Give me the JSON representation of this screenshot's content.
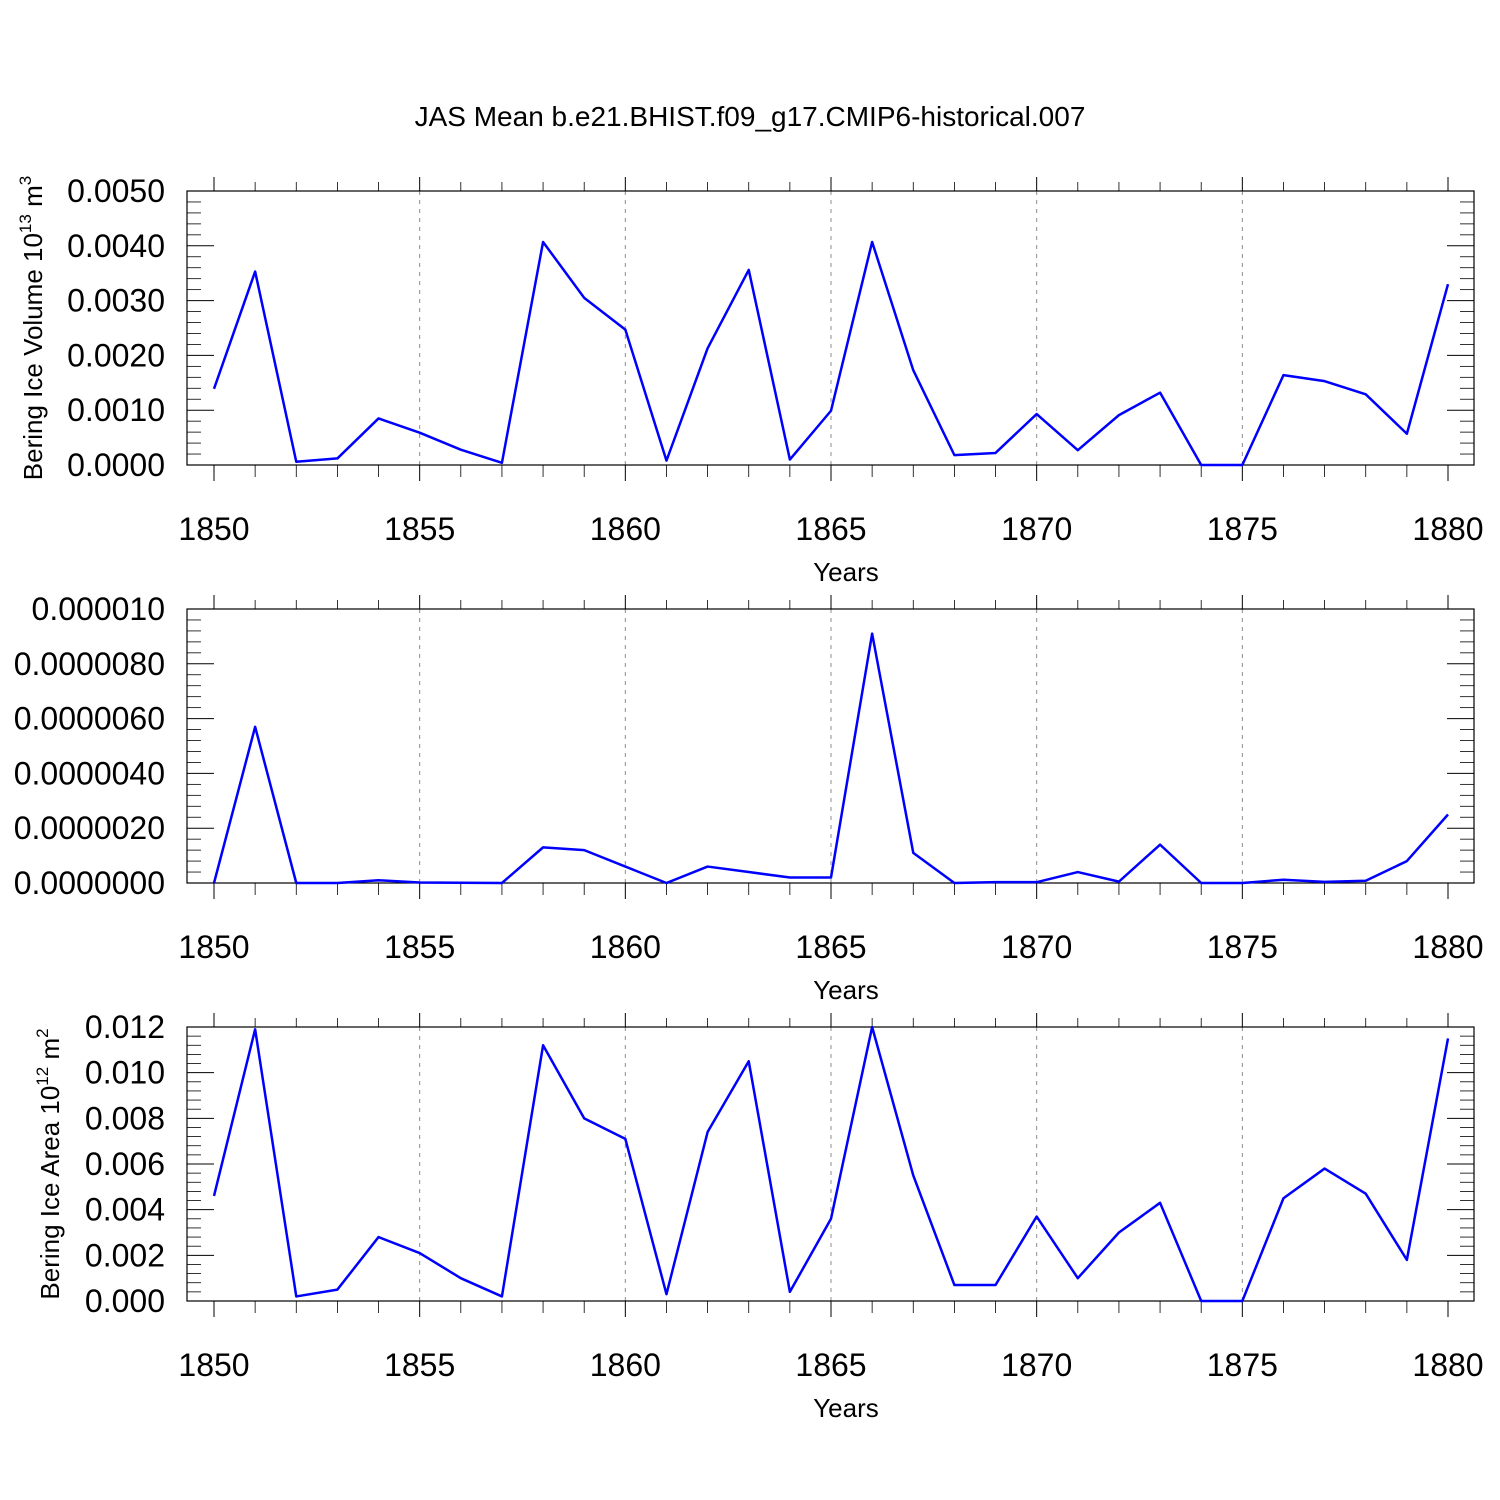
{
  "title": "JAS Mean b.e21.BHIST.f09_g17.CMIP6-historical.007",
  "colors": {
    "series": "#0000ff",
    "axis": "#000000",
    "grid": "#8c8c8c"
  },
  "chart_data": [
    {
      "type": "line",
      "xlabel": "Years",
      "ylabel_parts": {
        "prefix": "Bering Ice Volume 10",
        "exp": "13",
        "unit": " m",
        "unit_exp": "3"
      },
      "xlim": [
        1850,
        1880
      ],
      "ylim": [
        0,
        0.005
      ],
      "xticks": [
        "1850",
        "1855",
        "1860",
        "1865",
        "1870",
        "1875",
        "1880"
      ],
      "yticks": [
        "0.0000",
        "0.0010",
        "0.0020",
        "0.0030",
        "0.0040",
        "0.0050"
      ],
      "vertical_grid": "dashed at 5-year ticks",
      "x": [
        1850,
        1851,
        1852,
        1853,
        1854,
        1855,
        1856,
        1857,
        1858,
        1859,
        1860,
        1861,
        1862,
        1863,
        1864,
        1865,
        1866,
        1867,
        1868,
        1869,
        1870,
        1871,
        1872,
        1873,
        1874,
        1875,
        1876,
        1877,
        1878,
        1879,
        1880
      ],
      "series": [
        {
          "values": [
            0.00139,
            0.00353,
            6e-05,
            0.00012,
            0.00085,
            0.00059,
            0.00028,
            4e-05,
            0.00407,
            0.00305,
            0.00247,
            8e-05,
            0.00213,
            0.00356,
            0.0001,
            0.00099,
            0.00407,
            0.00173,
            0.00018,
            0.00022,
            0.00093,
            0.00027,
            0.00091,
            0.00132,
            0.0,
            0.0,
            0.00164,
            0.00153,
            0.00129,
            0.00057,
            0.0033
          ]
        }
      ]
    },
    {
      "type": "line",
      "xlabel": "Years",
      "xlim": [
        1850,
        1880
      ],
      "ylim": [
        0,
        1e-05
      ],
      "xticks": [
        "1850",
        "1855",
        "1860",
        "1865",
        "1870",
        "1875",
        "1880"
      ],
      "yticks": [
        "0.0000000",
        "0.0000020",
        "0.0000040",
        "0.0000060",
        "0.0000080",
        "0.000010"
      ],
      "vertical_grid": "dashed at 5-year ticks",
      "x": [
        1850,
        1851,
        1852,
        1853,
        1854,
        1855,
        1856,
        1857,
        1858,
        1859,
        1860,
        1861,
        1862,
        1863,
        1864,
        1865,
        1866,
        1867,
        1868,
        1869,
        1870,
        1871,
        1872,
        1873,
        1874,
        1875,
        1876,
        1877,
        1878,
        1879,
        1880
      ],
      "series": [
        {
          "values": [
            0.0,
            5.7e-06,
            0.0,
            0.0,
            1e-07,
            2e-08,
            1e-08,
            0.0,
            1.3e-06,
            1.2e-06,
            6e-07,
            0.0,
            6e-07,
            4e-07,
            2e-07,
            2e-07,
            9.1e-06,
            1.1e-06,
            0.0,
            3e-08,
            3e-08,
            4e-07,
            5e-08,
            1.4e-06,
            0.0,
            0.0,
            1.2e-07,
            4e-08,
            8e-08,
            8e-07,
            2.5e-06
          ]
        }
      ]
    },
    {
      "type": "line",
      "xlabel": "Years",
      "ylabel_parts": {
        "prefix": "Bering Ice Area 10",
        "exp": "12",
        "unit": " m",
        "unit_exp": "2"
      },
      "xlim": [
        1850,
        1880
      ],
      "ylim": [
        0,
        0.012
      ],
      "xticks": [
        "1850",
        "1855",
        "1860",
        "1865",
        "1870",
        "1875",
        "1880"
      ],
      "yticks": [
        "0.000",
        "0.002",
        "0.004",
        "0.006",
        "0.008",
        "0.010",
        "0.012"
      ],
      "vertical_grid": "dashed at 5-year ticks",
      "x": [
        1850,
        1851,
        1852,
        1853,
        1854,
        1855,
        1856,
        1857,
        1858,
        1859,
        1860,
        1861,
        1862,
        1863,
        1864,
        1865,
        1866,
        1867,
        1868,
        1869,
        1870,
        1871,
        1872,
        1873,
        1874,
        1875,
        1876,
        1877,
        1878,
        1879,
        1880
      ],
      "series": [
        {
          "values": [
            0.0046,
            0.0119,
            0.0002,
            0.0005,
            0.0028,
            0.0021,
            0.001,
            0.0002,
            0.0112,
            0.008,
            0.0071,
            0.0003,
            0.0074,
            0.0105,
            0.0004,
            0.0036,
            0.012,
            0.0055,
            0.0007,
            0.0007,
            0.0037,
            0.001,
            0.003,
            0.0043,
            0.0,
            0.0,
            0.0045,
            0.0058,
            0.0047,
            0.0018,
            0.0115
          ]
        }
      ]
    }
  ]
}
